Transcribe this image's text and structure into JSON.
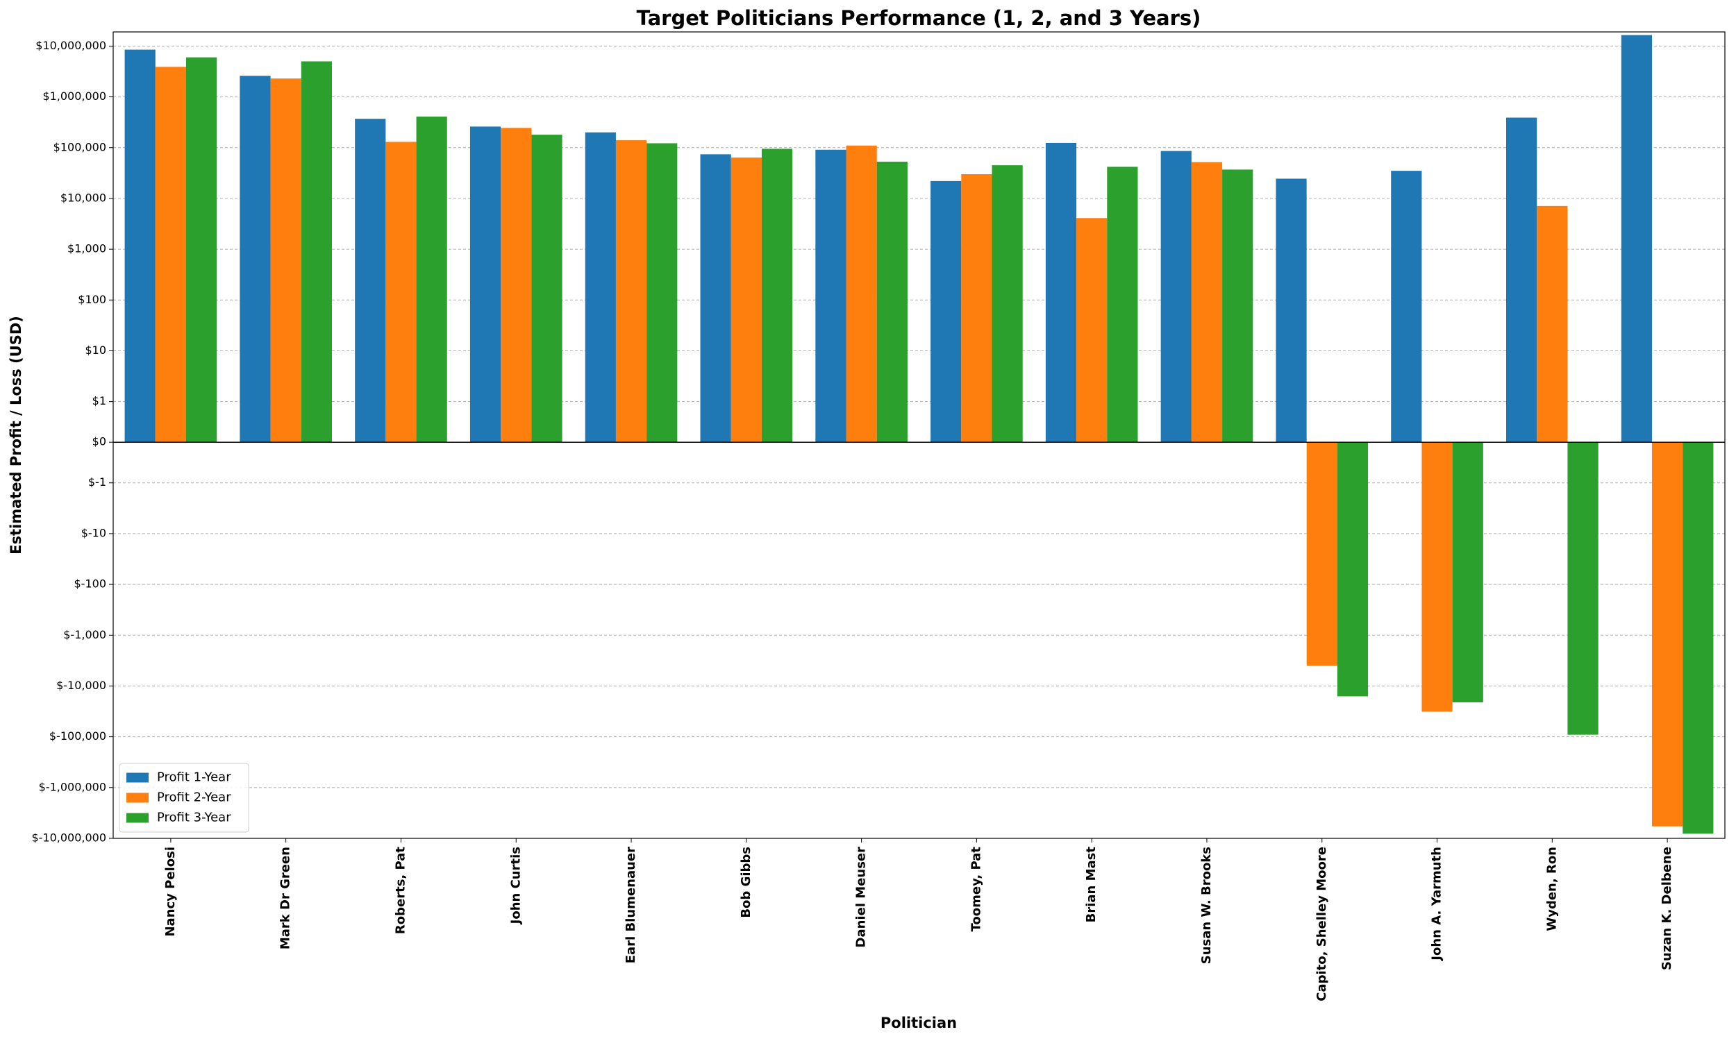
{
  "chart_data": {
    "type": "bar",
    "title": "Target Politicians Performance (1, 2, and 3 Years)",
    "x_label": "Politician",
    "y_label": "Estimated Profit / Loss (USD)",
    "yscale": "symlog",
    "linthresh": 1,
    "linscale": 0.72,
    "grid": true,
    "zero_line": true,
    "legend": "lower left",
    "categories": [
      "Nancy Pelosi",
      "Mark Dr Green",
      "Roberts, Pat",
      "John Curtis",
      "Earl Blumenauer",
      "Bob Gibbs",
      "Daniel Meuser",
      "Toomey, Pat",
      "Brian Mast",
      "Susan W. Brooks",
      "Capito, Shelley Moore",
      "John A. Yarmuth",
      "Wyden, Ron",
      "Suzan K. Delbene"
    ],
    "series": [
      {
        "name": "Profit 1-Year",
        "color": "#1f77b4",
        "values": [
          8500000,
          2600000,
          370000,
          260000,
          200000,
          74000,
          91000,
          22000,
          124000,
          86000,
          24500,
          35000,
          390000,
          16500000
        ]
      },
      {
        "name": "Profit 2-Year",
        "color": "#ff7f0e",
        "values": [
          3900000,
          2300000,
          130000,
          245000,
          140000,
          64000,
          110000,
          30000,
          4100,
          52000,
          -4000,
          -32000,
          7100,
          -5800000
        ]
      },
      {
        "name": "Profit 3-Year",
        "color": "#2ca02c",
        "values": [
          6000000,
          5000000,
          410000,
          180000,
          122000,
          95000,
          53000,
          45000,
          42000,
          37000,
          -16000,
          -21000,
          -91000,
          -8100000
        ]
      }
    ],
    "ylim": [
      -10000000,
      19000000
    ],
    "yticks": [
      {
        "value": -10000000,
        "label": "$-10,000,000"
      },
      {
        "value": -1000000,
        "label": "$-1,000,000"
      },
      {
        "value": -100000,
        "label": "$-100,000"
      },
      {
        "value": -10000,
        "label": "$-10,000"
      },
      {
        "value": -1000,
        "label": "$-1,000"
      },
      {
        "value": -100,
        "label": "$-100"
      },
      {
        "value": -10,
        "label": "$-10"
      },
      {
        "value": -1,
        "label": "$-1"
      },
      {
        "value": 0,
        "label": "$0"
      },
      {
        "value": 1,
        "label": "$1"
      },
      {
        "value": 10,
        "label": "$10"
      },
      {
        "value": 100,
        "label": "$100"
      },
      {
        "value": 1000,
        "label": "$1,000"
      },
      {
        "value": 10000,
        "label": "$10,000"
      },
      {
        "value": 100000,
        "label": "$100,000"
      },
      {
        "value": 1000000,
        "label": "$1,000,000"
      },
      {
        "value": 10000000,
        "label": "$10,000,000"
      }
    ]
  }
}
